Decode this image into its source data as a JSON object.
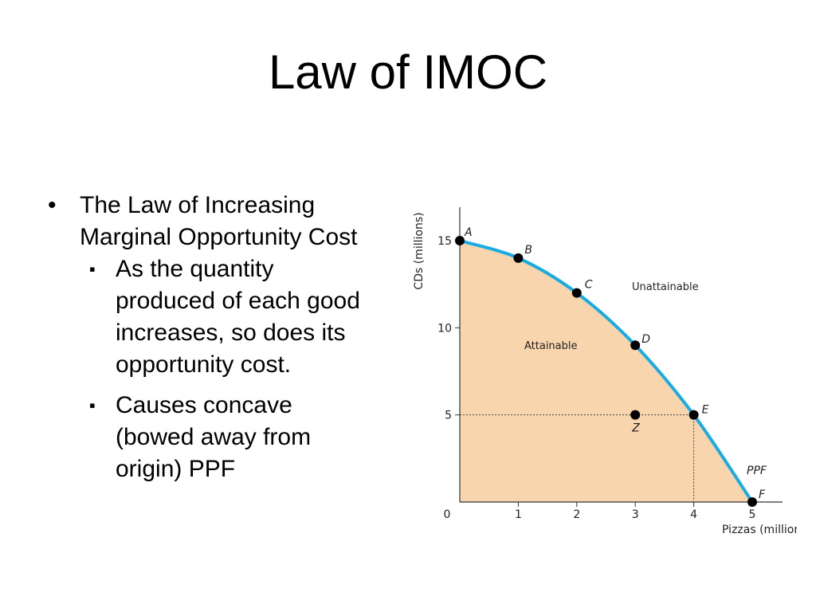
{
  "slide": {
    "title": "Law of IMOC",
    "bullet": {
      "marker": "•",
      "text": "The Law of Increasing Marginal Opportunity Cost",
      "subbullets": [
        {
          "marker": "▪",
          "text": "As the quantity produced of each good increases, so does its opportunity cost."
        },
        {
          "marker": "▪",
          "text": "Causes concave (bowed away from origin) PPF"
        }
      ]
    }
  },
  "chart_data": {
    "type": "line",
    "xlabel": "Pizzas (millions)",
    "ylabel": "CDs (millions)",
    "xlim": [
      0,
      5
    ],
    "ylim": [
      0,
      15
    ],
    "x_ticks": [
      "0",
      "1",
      "2",
      "3",
      "4",
      "5"
    ],
    "y_ticks": [
      "5",
      "10",
      "15"
    ],
    "series": [
      {
        "name": "PPF",
        "color": "#1aabe2",
        "points": [
          {
            "label": "A",
            "x": 0,
            "y": 15
          },
          {
            "label": "B",
            "x": 1,
            "y": 14
          },
          {
            "label": "C",
            "x": 2,
            "y": 12
          },
          {
            "label": "D",
            "x": 3,
            "y": 9
          },
          {
            "label": "E",
            "x": 4,
            "y": 5
          },
          {
            "label": "F",
            "x": 5,
            "y": 0
          }
        ]
      }
    ],
    "extra_points": [
      {
        "label": "Z",
        "x": 3,
        "y": 5
      }
    ],
    "reference_lines": {
      "x": 4,
      "y": 5
    },
    "region_labels": {
      "inside": "Attainable",
      "outside": "Unattainable"
    },
    "fill_color": "#f9d5ad"
  }
}
